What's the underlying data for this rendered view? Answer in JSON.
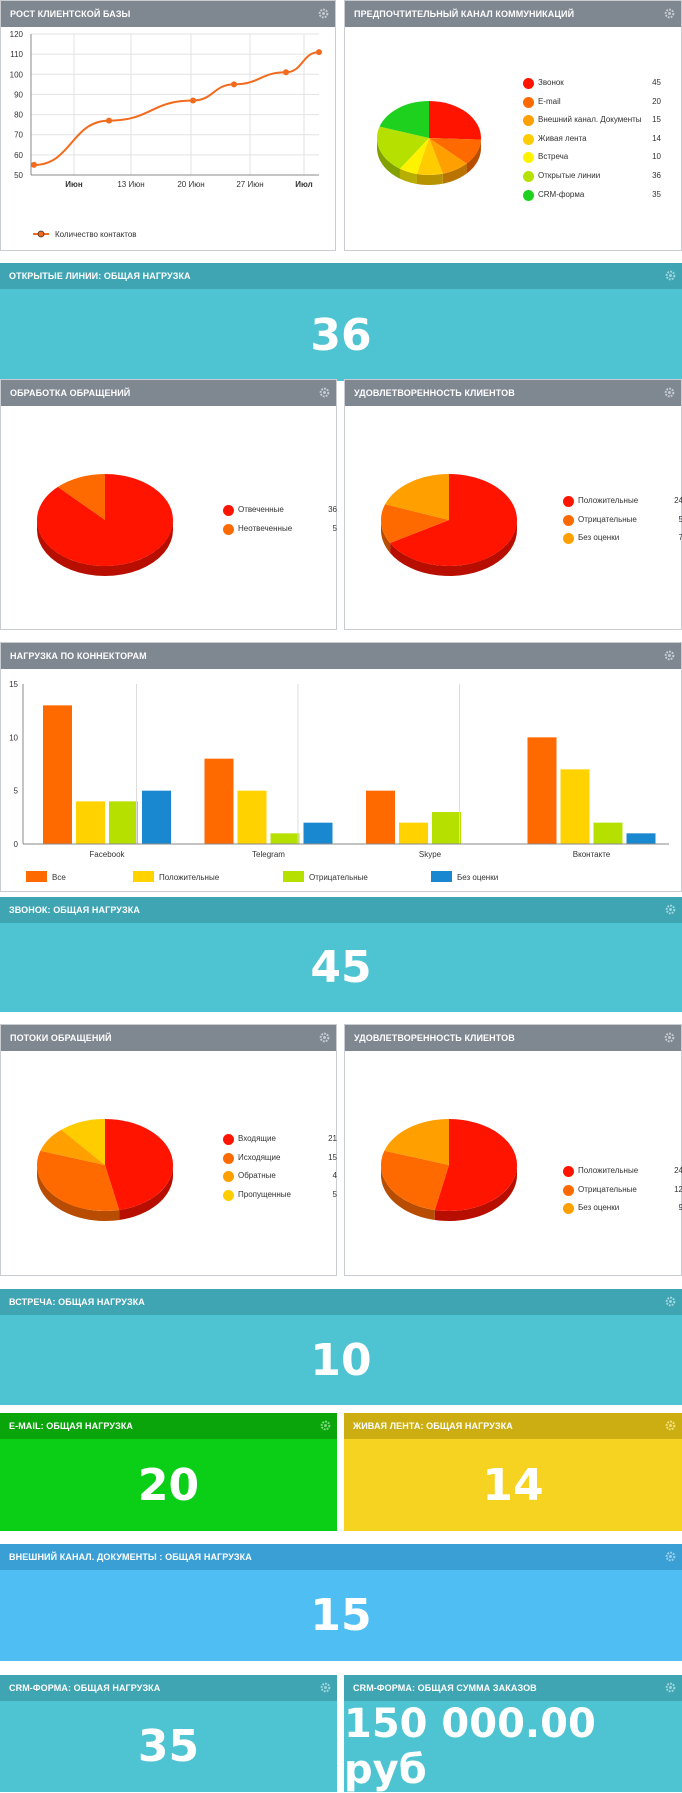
{
  "growth": {
    "title": "РОСТ КЛИЕНТСКОЙ БАЗЫ",
    "legend": "Количество контактов",
    "chart_data": {
      "type": "line",
      "x": [
        "Июн",
        "13 Июн",
        "20 Июн",
        "27 Июн",
        "Июл"
      ],
      "points": [
        55,
        77,
        87,
        95,
        101,
        111
      ],
      "ylim": [
        50,
        120
      ],
      "yticks": [
        "120",
        "110",
        "100",
        "90",
        "80",
        "70",
        "60",
        "50"
      ],
      "color": "#f26b1d"
    }
  },
  "channel": {
    "title": "ПРЕДПОЧТИТЕЛЬНЫЙ КАНАЛ КОММУНИКАЦИЙ",
    "chart_data": {
      "type": "pie",
      "slices": [
        {
          "label": "Звонок",
          "value": 45,
          "color": "#ff1400"
        },
        {
          "label": "E-mail",
          "value": 20,
          "color": "#ff6a00"
        },
        {
          "label": "Внешний канал. Документы",
          "value": 15,
          "color": "#ffa000"
        },
        {
          "label": "Живая лента",
          "value": 14,
          "color": "#ffcc00"
        },
        {
          "label": "Встреча",
          "value": 10,
          "color": "#fff200"
        },
        {
          "label": "Открытые линии",
          "value": 36,
          "color": "#b5e000"
        },
        {
          "label": "CRM-форма",
          "value": 35,
          "color": "#1ed11e"
        }
      ]
    }
  },
  "openlines": {
    "title": "ОТКРЫТЫЕ ЛИНИИ: ОБЩАЯ НАГРУЗКА",
    "value": "36"
  },
  "processing": {
    "title": "ОБРАБОТКА ОБРАЩЕНИЙ",
    "chart_data": {
      "type": "pie",
      "slices": [
        {
          "label": "Отвеченные",
          "value": 36,
          "color": "#ff1400"
        },
        {
          "label": "Неотвеченные",
          "value": 5,
          "color": "#ff6a00"
        }
      ]
    }
  },
  "satisfaction1": {
    "title": "УДОВЛЕТВОРЕННОСТЬ КЛИЕНТОВ",
    "chart_data": {
      "type": "pie",
      "slices": [
        {
          "label": "Положительные",
          "value": 24,
          "color": "#ff1400"
        },
        {
          "label": "Отрицательные",
          "value": 5,
          "color": "#ff6a00"
        },
        {
          "label": "Без оценки",
          "value": 7,
          "color": "#ffa000"
        }
      ]
    }
  },
  "connectors": {
    "title": "НАГРУЗКА ПО КОННЕКТОРАМ",
    "chart_data": {
      "type": "bar",
      "categories": [
        "Facebook",
        "Telegram",
        "Skype",
        "Вконтакте"
      ],
      "series": [
        {
          "name": "Все",
          "values": [
            13,
            8,
            5,
            10
          ],
          "color": "#ff6a00"
        },
        {
          "name": "Положительные",
          "values": [
            4,
            5,
            2,
            7
          ],
          "color": "#ffd200"
        },
        {
          "name": "Отрицательные",
          "values": [
            4,
            1,
            3,
            2
          ],
          "color": "#b5e000"
        },
        {
          "name": "Без оценки",
          "values": [
            5,
            2,
            0,
            1
          ],
          "color": "#1a88d0"
        }
      ],
      "ylim": [
        0,
        15
      ],
      "yticks": [
        "15",
        "10",
        "5",
        "0"
      ]
    }
  },
  "calls": {
    "title": "ЗВОНОК: ОБЩАЯ НАГРУЗКА",
    "value": "45"
  },
  "flows": {
    "title": "ПОТОКИ ОБРАЩЕНИЙ",
    "chart_data": {
      "type": "pie",
      "slices": [
        {
          "label": "Входящие",
          "value": 21,
          "color": "#ff1400"
        },
        {
          "label": "Исходящие",
          "value": 15,
          "color": "#ff6a00"
        },
        {
          "label": "Обратные",
          "value": 4,
          "color": "#ffa000"
        },
        {
          "label": "Пропущенные",
          "value": 5,
          "color": "#ffcc00"
        }
      ]
    }
  },
  "satisfaction2": {
    "title": "УДОВЛЕТВОРЕННОСТЬ КЛИЕНТОВ",
    "chart_data": {
      "type": "pie",
      "slices": [
        {
          "label": "Положительные",
          "value": 24,
          "color": "#ff1400"
        },
        {
          "label": "Отрицательные",
          "value": 12,
          "color": "#ff6a00"
        },
        {
          "label": "Без оценки",
          "value": 9,
          "color": "#ffa000"
        }
      ]
    }
  },
  "meeting": {
    "title": "ВСТРЕЧА: ОБЩАЯ НАГРУЗКА",
    "value": "10"
  },
  "email": {
    "title": "E-MAIL: ОБЩАЯ НАГРУЗКА",
    "value": "20"
  },
  "livefeed": {
    "title": "ЖИВАЯ ЛЕНТА: ОБЩАЯ НАГРУЗКА",
    "value": "14"
  },
  "external": {
    "title": "ВНЕШНИЙ КАНАЛ. ДОКУМЕНТЫ : ОБЩАЯ НАГРУЗКА",
    "value": "15"
  },
  "crm": {
    "title": "CRM-ФОРМА: ОБЩАЯ НАГРУЗКА",
    "value": "35"
  },
  "crmsum": {
    "title": "CRM-ФОРМА: ОБЩАЯ СУММА ЗАКАЗОВ",
    "value": "150 000.00 руб"
  }
}
